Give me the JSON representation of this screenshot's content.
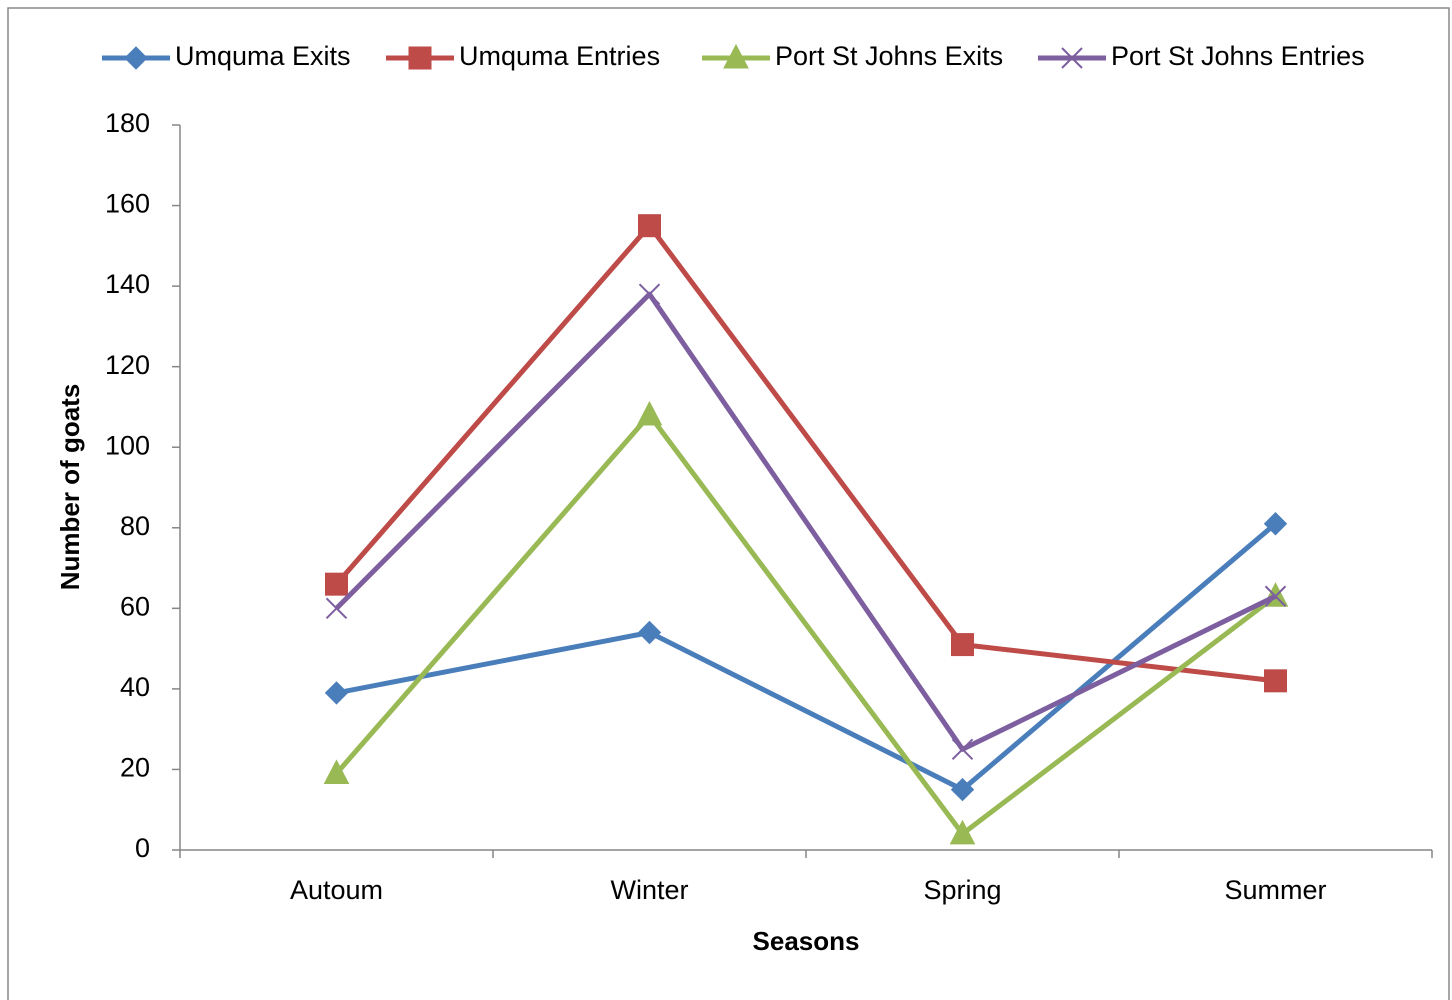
{
  "chart_data": {
    "type": "line",
    "categories": [
      "Autoum",
      "Winter",
      "Spring",
      "Summer"
    ],
    "series": [
      {
        "name": "Umquma Exits",
        "color": "#4a7ebb",
        "marker": "diamond",
        "values": [
          39,
          54,
          15,
          81
        ]
      },
      {
        "name": "Umquma Entries",
        "color": "#be4b48",
        "marker": "square",
        "values": [
          66,
          155,
          51,
          42
        ]
      },
      {
        "name": "Port St Johns Exits",
        "color": "#98b954",
        "marker": "triangle",
        "values": [
          19,
          108,
          4,
          63
        ]
      },
      {
        "name": "Port St Johns Entries",
        "color": "#7d5fa0",
        "marker": "x",
        "values": [
          60,
          138,
          25,
          63
        ]
      }
    ],
    "xlabel": "Seasons",
    "ylabel": "Number of goats",
    "ylim": [
      0,
      180
    ],
    "yticks": [
      0,
      20,
      40,
      60,
      80,
      100,
      120,
      140,
      160,
      180
    ],
    "legend": "top"
  }
}
